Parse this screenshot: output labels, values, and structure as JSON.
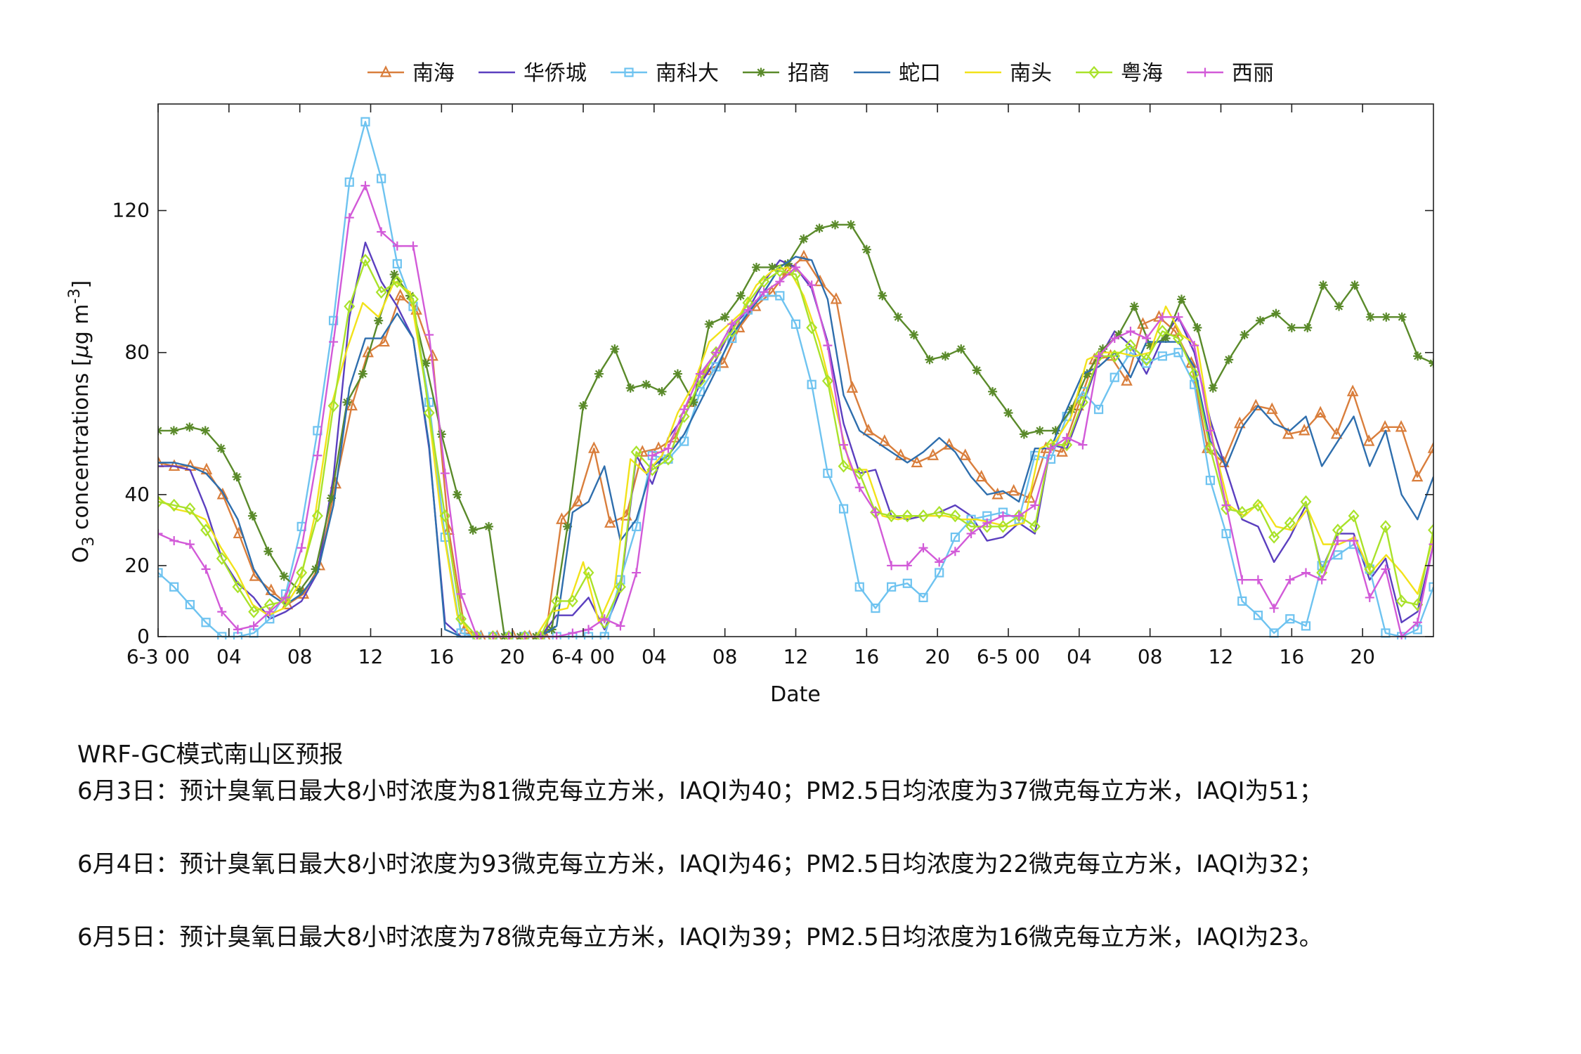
{
  "chart_data": {
    "type": "line",
    "xlabel": "Date",
    "ylabel": "O3 concentrations [μg m-3]",
    "ylabel_parts": {
      "o": "O",
      "sub": "3",
      "main": " concentrations [",
      "mu": "μ",
      "g": "g m",
      "sup": "-3",
      "close": "]"
    },
    "ylim": [
      0,
      150
    ],
    "yticks": [
      0,
      20,
      40,
      80,
      120
    ],
    "x_unit": "hour",
    "xlim": [
      0,
      72
    ],
    "xticks": [
      {
        "x": 0,
        "label": "6-3 00"
      },
      {
        "x": 4,
        "label": "04"
      },
      {
        "x": 8,
        "label": "08"
      },
      {
        "x": 12,
        "label": "12"
      },
      {
        "x": 16,
        "label": "16"
      },
      {
        "x": 20,
        "label": "20"
      },
      {
        "x": 24,
        "label": "6-4 00"
      },
      {
        "x": 28,
        "label": "04"
      },
      {
        "x": 32,
        "label": "08"
      },
      {
        "x": 36,
        "label": "12"
      },
      {
        "x": 40,
        "label": "16"
      },
      {
        "x": 44,
        "label": "20"
      },
      {
        "x": 48,
        "label": "6-5 00"
      },
      {
        "x": 52,
        "label": "04"
      },
      {
        "x": 56,
        "label": "08"
      },
      {
        "x": 60,
        "label": "12"
      },
      {
        "x": 64,
        "label": "16"
      },
      {
        "x": 68,
        "label": "20"
      }
    ],
    "grid": false,
    "legend_position": "top",
    "series": [
      {
        "name": "南海",
        "color": "#D97E3C",
        "marker": "triangle",
        "values": [
          49,
          48,
          48,
          47,
          40,
          29,
          17,
          13,
          9,
          12,
          20,
          43,
          65,
          80,
          83,
          96,
          92,
          79,
          30,
          2,
          0,
          0,
          0,
          0,
          0,
          33,
          38,
          53,
          32,
          34,
          52,
          53,
          56,
          66,
          75,
          77,
          87,
          93,
          97,
          103,
          107,
          100,
          95,
          70,
          58,
          55,
          51,
          49,
          51,
          54,
          51,
          45,
          40,
          41,
          39,
          53,
          52,
          65,
          78,
          79,
          72,
          88,
          90,
          86,
          77,
          53,
          49,
          60,
          65,
          64,
          57,
          58,
          63,
          57,
          69,
          55,
          59,
          59,
          45,
          53
        ]
      },
      {
        "name": "华侨城",
        "color": "#5B3FBF",
        "marker": "none",
        "values": [
          48,
          48,
          47,
          36,
          22,
          15,
          11,
          5,
          7,
          10,
          18,
          45,
          90,
          111,
          100,
          93,
          84,
          53,
          4,
          0,
          0,
          0,
          0,
          0,
          0,
          6,
          6,
          11,
          2,
          13,
          51,
          43,
          56,
          62,
          71,
          78,
          87,
          92,
          100,
          106,
          104,
          98,
          83,
          60,
          46,
          47,
          34,
          33,
          34,
          35,
          37,
          34,
          27,
          28,
          32,
          29,
          54,
          53,
          65,
          78,
          86,
          82,
          74,
          84,
          90,
          80,
          61,
          47,
          33,
          31,
          21,
          28,
          37,
          19,
          29,
          29,
          16,
          22,
          4,
          7,
          26
        ]
      },
      {
        "name": "南科大",
        "color": "#6EC3F0",
        "marker": "square",
        "values": [
          18,
          14,
          9,
          4,
          0,
          0,
          1,
          5,
          12,
          31,
          58,
          89,
          128,
          145,
          129,
          105,
          93,
          66,
          28,
          1,
          0,
          0,
          0,
          0,
          0,
          0,
          0,
          0,
          0,
          16,
          31,
          51,
          50,
          55,
          69,
          76,
          84,
          92,
          96,
          96,
          88,
          71,
          46,
          36,
          14,
          8,
          14,
          15,
          11,
          18,
          28,
          33,
          34,
          35,
          33,
          51,
          50,
          62,
          69,
          64,
          73,
          80,
          77,
          79,
          80,
          71,
          44,
          29,
          10,
          6,
          1,
          5,
          3,
          20,
          23,
          26,
          19,
          1,
          0,
          2,
          14
        ]
      },
      {
        "name": "招商",
        "color": "#5A8A2A",
        "marker": "asterisk",
        "values": [
          58,
          58,
          59,
          58,
          53,
          45,
          34,
          24,
          17,
          13,
          19,
          39,
          66,
          74,
          89,
          102,
          96,
          77,
          57,
          40,
          30,
          31,
          0,
          0,
          0,
          2,
          31,
          65,
          74,
          81,
          70,
          71,
          69,
          74,
          66,
          88,
          90,
          96,
          104,
          104,
          105,
          112,
          115,
          116,
          116,
          109,
          96,
          90,
          85,
          78,
          79,
          81,
          75,
          69,
          63,
          57,
          58,
          58,
          64,
          74,
          81,
          85,
          93,
          82,
          84,
          95,
          87,
          70,
          78,
          85,
          89,
          91,
          87,
          87,
          99,
          93,
          99,
          90,
          90,
          90,
          79,
          77
        ]
      },
      {
        "name": "蛇口",
        "color": "#2E6EAD",
        "marker": "none",
        "values": [
          49,
          49,
          48,
          46,
          41,
          33,
          19,
          12,
          9,
          12,
          18,
          37,
          70,
          84,
          84,
          91,
          84,
          54,
          2,
          0,
          0,
          0,
          0,
          0,
          0,
          3,
          35,
          38,
          48,
          27,
          33,
          48,
          51,
          57,
          66,
          75,
          85,
          91,
          97,
          104,
          107,
          106,
          95,
          68,
          58,
          55,
          52,
          49,
          52,
          56,
          52,
          45,
          40,
          41,
          38,
          53,
          53,
          64,
          74,
          76,
          80,
          73,
          83,
          83,
          83,
          76,
          55,
          48,
          59,
          65,
          60,
          58,
          62,
          48,
          55,
          62,
          48,
          58,
          40,
          33,
          45
        ]
      },
      {
        "name": "南头",
        "color": "#F2E21A",
        "marker": "none",
        "values": [
          39,
          36,
          35,
          33,
          25,
          18,
          9,
          6,
          8,
          15,
          35,
          65,
          81,
          94,
          90,
          100,
          97,
          70,
          33,
          6,
          0,
          0,
          0,
          0,
          0,
          7,
          8,
          21,
          4,
          14,
          50,
          46,
          51,
          63,
          71,
          83,
          87,
          91,
          99,
          103,
          104,
          96,
          83,
          65,
          47,
          47,
          34,
          33,
          34,
          34,
          34,
          33,
          33,
          32,
          31,
          32,
          53,
          55,
          62,
          78,
          80,
          80,
          79,
          80,
          93,
          85,
          82,
          55,
          37,
          34,
          38,
          31,
          30,
          36,
          26,
          26,
          28,
          18,
          23,
          18,
          12,
          28
        ]
      },
      {
        "name": "粤海",
        "color": "#A9E22A",
        "marker": "diamond",
        "values": [
          38,
          37,
          36,
          30,
          22,
          14,
          7,
          9,
          10,
          18,
          34,
          65,
          93,
          106,
          97,
          100,
          95,
          63,
          34,
          5,
          0,
          0,
          0,
          0,
          0,
          10,
          10,
          18,
          4,
          14,
          52,
          47,
          50,
          62,
          72,
          80,
          86,
          94,
          100,
          103,
          102,
          87,
          72,
          48,
          46,
          35,
          34,
          34,
          34,
          35,
          34,
          31,
          31,
          31,
          34,
          31,
          54,
          54,
          66,
          79,
          79,
          82,
          78,
          86,
          84,
          74,
          53,
          36,
          35,
          37,
          28,
          32,
          38,
          18,
          30,
          34,
          19,
          31,
          10,
          9,
          30
        ]
      },
      {
        "name": "西丽",
        "color": "#D25AD8",
        "marker": "plus",
        "values": [
          29,
          27,
          26,
          19,
          7,
          2,
          3,
          7,
          11,
          25,
          51,
          83,
          118,
          127,
          114,
          110,
          110,
          85,
          46,
          12,
          0,
          0,
          0,
          0,
          0,
          0,
          1,
          2,
          5,
          3,
          18,
          51,
          53,
          64,
          74,
          80,
          88,
          92,
          97,
          100,
          104,
          99,
          82,
          54,
          42,
          35,
          20,
          20,
          25,
          21,
          24,
          29,
          32,
          34,
          34,
          37,
          53,
          56,
          54,
          79,
          84,
          86,
          84,
          90,
          90,
          82,
          58,
          37,
          16,
          16,
          8,
          16,
          18,
          16,
          27,
          27,
          11,
          19,
          0,
          4,
          26
        ]
      }
    ]
  },
  "notes": {
    "title": "WRF-GC模式南山区预报",
    "line1": "6月3日：预计臭氧日最大8小时浓度为81微克每立方米，IAQI为40；PM2.5日均浓度为37微克每立方米，IAQI为51；",
    "line2": "6月4日：预计臭氧日最大8小时浓度为93微克每立方米，IAQI为46；PM2.5日均浓度为22微克每立方米，IAQI为32；",
    "line3": "6月5日：预计臭氧日最大8小时浓度为78微克每立方米，IAQI为39；PM2.5日均浓度为16微克每立方米，IAQI为23。"
  }
}
